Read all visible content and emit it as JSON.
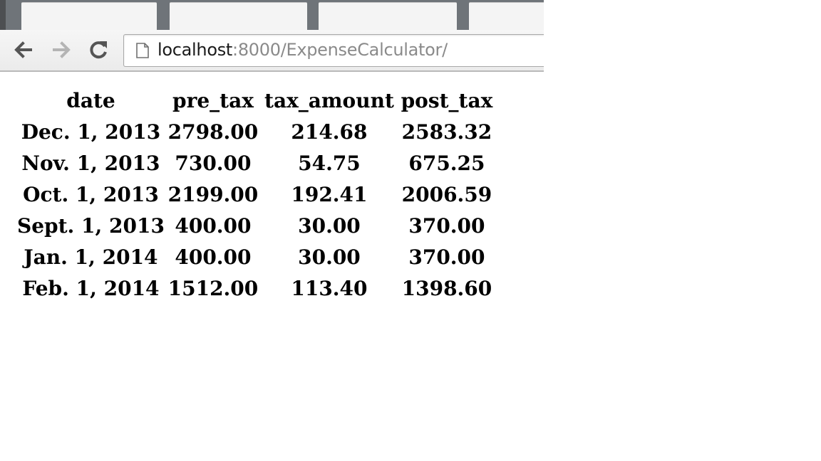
{
  "browser": {
    "address_bar": {
      "host": "localhost",
      "path": ":8000/ExpenseCalculator/"
    },
    "icons": {
      "back": "back-arrow-icon",
      "forward": "forward-arrow-icon",
      "reload": "reload-icon",
      "page": "page-icon"
    }
  },
  "table": {
    "headers": {
      "date": "date",
      "pre_tax": "pre_tax",
      "tax_amount": "tax_amount",
      "post_tax": "post_tax"
    },
    "rows": [
      {
        "date": "Dec. 1, 2013",
        "pre_tax": "2798.00",
        "tax_amount": "214.68",
        "post_tax": "2583.32"
      },
      {
        "date": "Nov. 1, 2013",
        "pre_tax": "730.00",
        "tax_amount": "54.75",
        "post_tax": "675.25"
      },
      {
        "date": "Oct. 1, 2013",
        "pre_tax": "2199.00",
        "tax_amount": "192.41",
        "post_tax": "2006.59"
      },
      {
        "date": "Sept. 1, 2013",
        "pre_tax": "400.00",
        "tax_amount": "30.00",
        "post_tax": "370.00"
      },
      {
        "date": "Jan. 1, 2014",
        "pre_tax": "400.00",
        "tax_amount": "30.00",
        "post_tax": "370.00"
      },
      {
        "date": "Feb. 1, 2014",
        "pre_tax": "1512.00",
        "tax_amount": "113.40",
        "post_tax": "1398.60"
      }
    ]
  }
}
